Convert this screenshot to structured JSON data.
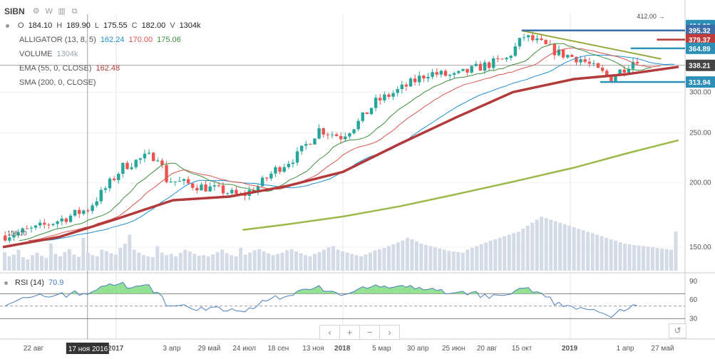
{
  "header": {
    "ticker": "SIBN",
    "gear_icon": "gear-icon",
    "interval": "W",
    "bars_icon": "bars-icon",
    "screen_icon": "screenshot-icon",
    "o_label": "O",
    "o_value": "184.10",
    "h_label": "H",
    "h_value": "189.90",
    "l_label": "L",
    "l_value": "175.55",
    "c_label": "C",
    "c_value": "182.00",
    "v_label": "V",
    "v_value": "1304k"
  },
  "indicators": {
    "alligator_label": "ALLIGATOR (13, 8, 5)",
    "alligator_v1": "162.24",
    "alligator_v2": "170.00",
    "alligator_v3": "175.06",
    "volume_label": "VOLUME",
    "volume_value": "1304k",
    "ema_label": "EMA (55, 0, CLOSE)",
    "ema_value": "162.48",
    "sma_label": "SMA (200, 0, CLOSE)"
  },
  "rsi": {
    "label": "RSI (14)",
    "value": "70.9"
  },
  "zoom": {
    "prev": "‹",
    "plus": "+",
    "minus": "−",
    "next": "›",
    "reset": "↺"
  },
  "colors": {
    "up": "#26a69a",
    "down": "#ef5350",
    "ema": "#b23a3a",
    "sma": "#9cb84a",
    "jaw": "#1f8fd1",
    "teeth": "#d9534f",
    "lips": "#3e8e3e",
    "volume": "#d4dbe6",
    "rsi_line": "#4a7fc1",
    "rsi_fill": "#7fdc7f",
    "badge_blue": "#3c6da8",
    "badge_red": "#c23b3b",
    "badge_dark": "#444444",
    "badge_teal": "#2b8fb8",
    "guide_blue": "#3f6ea6",
    "guide_red": "#b73a3a",
    "guide_teal": "#2f92b5",
    "trend_olive": "#97a83f"
  },
  "chart_data": {
    "type": "candlestick",
    "title": "SIBN",
    "x_range": [
      "2016-07-04",
      "2019-06-24"
    ],
    "x_ticks": [
      {
        "date": "2016-08-22",
        "label": "22 авг"
      },
      {
        "date": "2016-11-17",
        "label": "17 ноя 2016",
        "crosshair": true
      },
      {
        "date": "2017-01-02",
        "label": "2017"
      },
      {
        "date": "2017-04-03",
        "label": "3 апр"
      },
      {
        "date": "2017-05-29",
        "label": "29 май"
      },
      {
        "date": "2017-07-24",
        "label": "24 июл"
      },
      {
        "date": "2017-09-18",
        "label": "18 сен"
      },
      {
        "date": "2017-11-13",
        "label": "13 ноя"
      },
      {
        "date": "2018-01-01",
        "label": "2018"
      },
      {
        "date": "2018-03-05",
        "label": "5 мар"
      },
      {
        "date": "2018-04-30",
        "label": "30 апр"
      },
      {
        "date": "2018-06-25",
        "label": "25 июн"
      },
      {
        "date": "2018-08-20",
        "label": "20 авг"
      },
      {
        "date": "2018-10-15",
        "label": "15 окт"
      },
      {
        "date": "2019-01-01",
        "label": "2019"
      },
      {
        "date": "2019-04-01",
        "label": "1 апр"
      },
      {
        "date": "2019-05-27",
        "label": "27 май"
      }
    ],
    "y_axis": {
      "scale": "log",
      "range": [
        135,
        425
      ],
      "ticks": [
        150,
        200,
        250,
        300
      ],
      "tick_labels": [
        "150.00",
        "200.00",
        "250.00",
        "300.00"
      ],
      "position": "right"
    },
    "price_badges": [
      {
        "value": 404.0,
        "label": "404.00",
        "role": "last-high",
        "color": "#2b8fb8"
      },
      {
        "value": 395.32,
        "label": "395.32",
        "role": "guide",
        "color": "#3c6da8"
      },
      {
        "value": 379.37,
        "label": "379.37",
        "role": "guide",
        "color": "#c23b3b"
      },
      {
        "value": 364.89,
        "label": "364.89",
        "role": "guide",
        "color": "#2b8fb8"
      },
      {
        "value": 338.21,
        "label": "338.21",
        "role": "crosshair",
        "color": "#444444"
      },
      {
        "value": 313.94,
        "label": "313.94",
        "role": "guide",
        "color": "#2b8fb8"
      }
    ],
    "annotations": [
      {
        "text": "412.00 →",
        "date": "2019-05-20",
        "value": 412.0
      },
      {
        "text": "156.10",
        "date": "2016-07-11",
        "value": 156.1
      }
    ],
    "guide_lines": [
      {
        "from": "2018-10-15",
        "to": "2019-06-24",
        "value": 395.32,
        "color": "#3f6ea6"
      },
      {
        "from": "2019-05-20",
        "to": "2019-06-24",
        "value": 379.37,
        "color": "#b73a3a"
      },
      {
        "from": "2019-04-08",
        "to": "2019-06-24",
        "value": 364.89,
        "color": "#2f92b5"
      },
      {
        "from": "2019-02-18",
        "to": "2019-06-24",
        "value": 313.94,
        "color": "#2f92b5"
      }
    ],
    "trend_line": {
      "from_date": "2018-10-15",
      "from_value": 395,
      "to_date": "2019-05-27",
      "to_value": 348
    },
    "crosshair": {
      "date": "2016-11-17",
      "value": 338.21
    },
    "price_path": [
      {
        "date": "2016-07-04",
        "close": 158
      },
      {
        "date": "2016-08-22",
        "close": 163
      },
      {
        "date": "2016-10-03",
        "close": 170
      },
      {
        "date": "2016-11-14",
        "close": 178
      },
      {
        "date": "2016-12-12",
        "close": 195
      },
      {
        "date": "2017-01-09",
        "close": 215
      },
      {
        "date": "2017-02-13",
        "close": 224
      },
      {
        "date": "2017-03-06",
        "close": 226
      },
      {
        "date": "2017-03-20",
        "close": 203
      },
      {
        "date": "2017-05-01",
        "close": 198
      },
      {
        "date": "2017-06-19",
        "close": 193
      },
      {
        "date": "2017-07-17",
        "close": 188
      },
      {
        "date": "2017-08-14",
        "close": 197
      },
      {
        "date": "2017-09-11",
        "close": 212
      },
      {
        "date": "2017-10-16",
        "close": 226
      },
      {
        "date": "2017-11-20",
        "close": 254
      },
      {
        "date": "2017-12-25",
        "close": 246
      },
      {
        "date": "2018-01-22",
        "close": 262
      },
      {
        "date": "2018-02-19",
        "close": 287
      },
      {
        "date": "2018-04-02",
        "close": 305
      },
      {
        "date": "2018-05-14",
        "close": 327
      },
      {
        "date": "2018-06-25",
        "close": 322
      },
      {
        "date": "2018-08-06",
        "close": 336
      },
      {
        "date": "2018-09-17",
        "close": 348
      },
      {
        "date": "2018-10-15",
        "close": 385
      },
      {
        "date": "2018-11-12",
        "close": 372
      },
      {
        "date": "2018-12-10",
        "close": 357
      },
      {
        "date": "2019-01-14",
        "close": 348
      },
      {
        "date": "2019-02-11",
        "close": 330
      },
      {
        "date": "2019-03-04",
        "close": 320
      },
      {
        "date": "2019-04-08",
        "close": 345
      },
      {
        "date": "2019-05-06",
        "close": 360
      },
      {
        "date": "2019-05-27",
        "close": 385
      },
      {
        "date": "2019-06-24",
        "close": 402
      }
    ],
    "series": [
      {
        "name": "EMA (55, 0, CLOSE)",
        "points": [
          {
            "date": "2016-07-04",
            "value": 150
          },
          {
            "date": "2016-10-03",
            "value": 157
          },
          {
            "date": "2017-01-02",
            "value": 170
          },
          {
            "date": "2017-04-03",
            "value": 185
          },
          {
            "date": "2017-07-03",
            "value": 188
          },
          {
            "date": "2017-10-02",
            "value": 197
          },
          {
            "date": "2018-01-01",
            "value": 210
          },
          {
            "date": "2018-04-02",
            "value": 238
          },
          {
            "date": "2018-07-02",
            "value": 268
          },
          {
            "date": "2018-10-01",
            "value": 300
          },
          {
            "date": "2019-01-07",
            "value": 318
          },
          {
            "date": "2019-04-01",
            "value": 325
          },
          {
            "date": "2019-06-24",
            "value": 336
          }
        ]
      },
      {
        "name": "SMA (200, 0, CLOSE)",
        "points": [
          {
            "date": "2017-07-24",
            "value": 162
          },
          {
            "date": "2017-10-02",
            "value": 166
          },
          {
            "date": "2018-01-01",
            "value": 172
          },
          {
            "date": "2018-04-02",
            "value": 180
          },
          {
            "date": "2018-07-02",
            "value": 190
          },
          {
            "date": "2018-10-01",
            "value": 201
          },
          {
            "date": "2019-01-07",
            "value": 214
          },
          {
            "date": "2019-04-01",
            "value": 228
          },
          {
            "date": "2019-06-24",
            "value": 242
          }
        ]
      }
    ],
    "volume": {
      "label": "VOLUME",
      "max": 1900,
      "values": [
        620,
        480,
        540,
        700,
        450,
        380,
        520,
        600,
        500,
        430,
        900,
        560,
        480,
        620,
        720,
        540,
        460,
        1100,
        600,
        520,
        480,
        700,
        650,
        580,
        540,
        760,
        900,
        1200,
        700,
        600,
        520,
        480,
        450,
        820,
        600,
        520,
        560,
        480,
        600,
        700,
        640,
        560,
        500,
        520,
        480,
        540,
        620,
        700,
        580,
        520,
        480,
        760,
        540,
        600,
        680,
        720,
        640,
        580,
        520,
        560,
        600,
        680,
        720,
        640,
        580,
        520,
        480,
        560,
        620,
        700,
        780,
        820,
        700,
        640,
        600,
        560,
        520,
        480,
        540,
        600,
        680,
        720,
        760,
        820,
        880,
        940,
        1000,
        1100,
        1050,
        980,
        900,
        860,
        820,
        780,
        740,
        700,
        660,
        640,
        620,
        600,
        700,
        760,
        820,
        880,
        940,
        1000,
        1050,
        1100,
        1150,
        1200,
        1250,
        1300,
        1400,
        1500,
        1600,
        1700,
        1800,
        1750,
        1700,
        1650,
        1600,
        1550,
        1500,
        1450,
        1400,
        1350,
        1300,
        1250,
        1200,
        1150,
        1100,
        1050,
        1000,
        950,
        900,
        880,
        860,
        840,
        820,
        800,
        780,
        760,
        740,
        720,
        700,
        1304
      ]
    },
    "rsi": {
      "label": "RSI (14)",
      "last": 70.9,
      "range": [
        20,
        100
      ],
      "levels": [
        30,
        50,
        70
      ],
      "tick_labels": [
        "90",
        "60",
        "30"
      ],
      "tick_values": [
        90,
        60,
        30
      ]
    }
  }
}
